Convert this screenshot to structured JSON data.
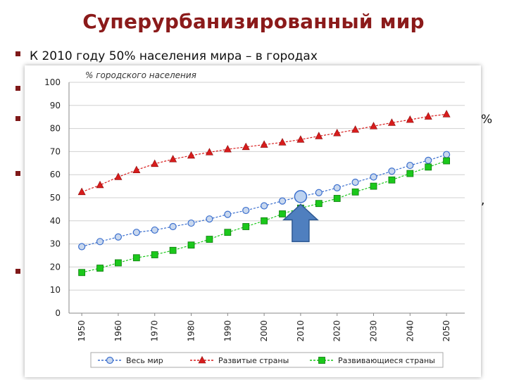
{
  "slide": {
    "title": "Суперурбанизированный мир",
    "bullet1": "К 2010 году 50% населения мира – в городах",
    "fragment_pct": "%",
    "fragment_comma": ","
  },
  "colors": {
    "title": "#8b1a1a",
    "world": "#3b6fce",
    "developed": "#d81c1c",
    "developing": "#1bc81b",
    "arrow": "#4f7fbf"
  },
  "chart_data": {
    "type": "line",
    "title": "% городского населения",
    "x": [
      1950,
      1955,
      1960,
      1965,
      1970,
      1975,
      1980,
      1985,
      1990,
      1995,
      2000,
      2005,
      2010,
      2015,
      2020,
      2025,
      2030,
      2035,
      2040,
      2045,
      2050
    ],
    "xticks": [
      "1950",
      "1960",
      "1970",
      "1980",
      "1990",
      "2000",
      "2010",
      "2020",
      "2030",
      "2040",
      "2050"
    ],
    "yticks": [
      "0",
      "10",
      "20",
      "30",
      "40",
      "50",
      "60",
      "70",
      "80",
      "90",
      "100"
    ],
    "ylim": [
      0,
      100
    ],
    "series": [
      {
        "name": "Весь мир",
        "marker": "circle",
        "values": [
          28.8,
          31.0,
          33.0,
          35.0,
          36.0,
          37.5,
          39.0,
          40.8,
          42.8,
          44.5,
          46.5,
          48.6,
          50.5,
          52.2,
          54.3,
          56.7,
          59.0,
          61.5,
          64.0,
          66.2,
          68.7
        ]
      },
      {
        "name": "Развитые страны",
        "marker": "triangle",
        "values": [
          52.5,
          55.5,
          59.0,
          62.0,
          64.7,
          66.7,
          68.3,
          69.7,
          71.0,
          72.0,
          73.0,
          74.0,
          75.2,
          76.7,
          78.0,
          79.5,
          81.0,
          82.5,
          83.8,
          85.2,
          86.2
        ]
      },
      {
        "name": "Развивающиеся страны",
        "marker": "square",
        "values": [
          17.6,
          19.5,
          21.8,
          24.0,
          25.3,
          27.2,
          29.5,
          32.0,
          35.0,
          37.5,
          40.0,
          43.0,
          45.5,
          47.5,
          49.7,
          52.5,
          55.0,
          57.7,
          60.5,
          63.3,
          66.0
        ]
      }
    ],
    "highlight": {
      "x": 2010,
      "series": "Весь мир",
      "annotation": "up-arrow"
    },
    "grid": "horizontal",
    "legend": "bottom"
  }
}
